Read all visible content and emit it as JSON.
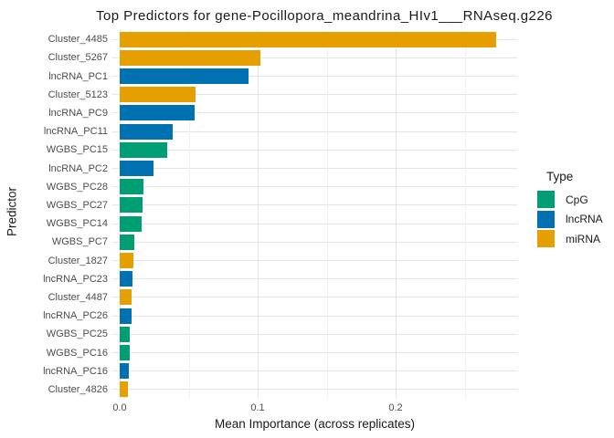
{
  "title": "Top Predictors for gene-Pocillopora_meandrina_HIv1___RNAseq.g226",
  "axes": {
    "x_label": "Mean Importance (across replicates)",
    "y_label": "Predictor"
  },
  "legend": {
    "title": "Type",
    "items": [
      {
        "label": "CpG",
        "color": "#009E73"
      },
      {
        "label": "lncRNA",
        "color": "#0072B2"
      },
      {
        "label": "miRNA",
        "color": "#E69F00"
      }
    ]
  },
  "chart_data": {
    "type": "bar",
    "orientation": "horizontal",
    "title": "Top Predictors for gene-Pocillopora_meandrina_HIv1___RNAseq.g226",
    "xlabel": "Mean Importance (across replicates)",
    "ylabel": "Predictor",
    "categories": [
      "Cluster_4485",
      "Cluster_5267",
      "lncRNA_PC1",
      "Cluster_5123",
      "lncRNA_PC9",
      "lncRNA_PC11",
      "WGBS_PC15",
      "lncRNA_PC2",
      "WGBS_PC28",
      "WGBS_PC27",
      "WGBS_PC14",
      "WGBS_PC7",
      "Cluster_1827",
      "lncRNA_PC23",
      "Cluster_4487",
      "lncRNA_PC26",
      "WGBS_PC25",
      "WGBS_PC16",
      "lncRNA_PC16",
      "Cluster_4826"
    ],
    "types": [
      "miRNA",
      "miRNA",
      "lncRNA",
      "miRNA",
      "lncRNA",
      "lncRNA",
      "CpG",
      "lncRNA",
      "CpG",
      "CpG",
      "CpG",
      "CpG",
      "miRNA",
      "lncRNA",
      "miRNA",
      "lncRNA",
      "CpG",
      "CpG",
      "lncRNA",
      "miRNA"
    ],
    "values": [
      0.273,
      0.102,
      0.0935,
      0.055,
      0.0545,
      0.0385,
      0.0345,
      0.0248,
      0.0172,
      0.0166,
      0.0159,
      0.0106,
      0.0099,
      0.0093,
      0.0087,
      0.0086,
      0.0074,
      0.0073,
      0.0066,
      0.006
    ],
    "colors": {
      "CpG": "#009E73",
      "lncRNA": "#0072B2",
      "miRNA": "#E69F00"
    },
    "xlim": [
      -0.005,
      0.288
    ],
    "x_major_ticks": [
      0.0,
      0.1,
      0.2
    ],
    "x_tick_labels": [
      "0.0",
      "0.1",
      "0.2"
    ],
    "x_minor_ticks": [
      0.05,
      0.15,
      0.25
    ],
    "grid": true,
    "legend_position": "right",
    "sorted": "descending"
  }
}
